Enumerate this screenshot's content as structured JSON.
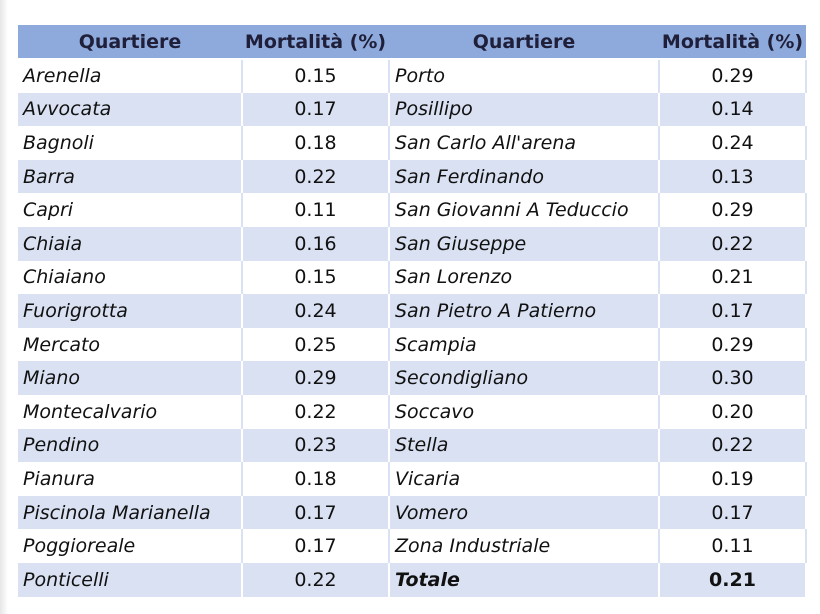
{
  "headers": [
    "Quartiere",
    "Mortalità (%)",
    "Quartiere",
    "Mortalità (%)"
  ],
  "rows": [
    {
      "q1": "Arenella",
      "m1": "0.15",
      "q2": "Porto",
      "m2": "0.29"
    },
    {
      "q1": "Avvocata",
      "m1": "0.17",
      "q2": "Posillipo",
      "m2": "0.14"
    },
    {
      "q1": "Bagnoli",
      "m1": "0.18",
      "q2": "San Carlo All'arena",
      "m2": "0.24"
    },
    {
      "q1": "Barra",
      "m1": "0.22",
      "q2": "San Ferdinando",
      "m2": "0.13"
    },
    {
      "q1": "Capri",
      "m1": "0.11",
      "q2": "San Giovanni A Teduccio",
      "m2": "0.29"
    },
    {
      "q1": "Chiaia",
      "m1": "0.16",
      "q2": "San Giuseppe",
      "m2": "0.22"
    },
    {
      "q1": "Chiaiano",
      "m1": "0.15",
      "q2": "San Lorenzo",
      "m2": "0.21"
    },
    {
      "q1": "Fuorigrotta",
      "m1": "0.24",
      "q2": "San Pietro A Patierno",
      "m2": "0.17"
    },
    {
      "q1": "Mercato",
      "m1": "0.25",
      "q2": "Scampia",
      "m2": "0.29"
    },
    {
      "q1": "Miano",
      "m1": "0.29",
      "q2": "Secondigliano",
      "m2": "0.30"
    },
    {
      "q1": "Montecalvario",
      "m1": "0.22",
      "q2": "Soccavo",
      "m2": "0.20"
    },
    {
      "q1": "Pendino",
      "m1": "0.23",
      "q2": "Stella",
      "m2": "0.22"
    },
    {
      "q1": "Pianura",
      "m1": "0.18",
      "q2": "Vicaria",
      "m2": "0.19"
    },
    {
      "q1": "Piscinola Marianella",
      "m1": "0.17",
      "q2": "Vomero",
      "m2": "0.17"
    },
    {
      "q1": "Poggioreale",
      "m1": "0.17",
      "q2": "Zona Industriale",
      "m2": "0.11"
    },
    {
      "q1": "Ponticelli",
      "m1": "0.22",
      "q2": "Totale",
      "m2": "0.21",
      "total": true
    }
  ]
}
